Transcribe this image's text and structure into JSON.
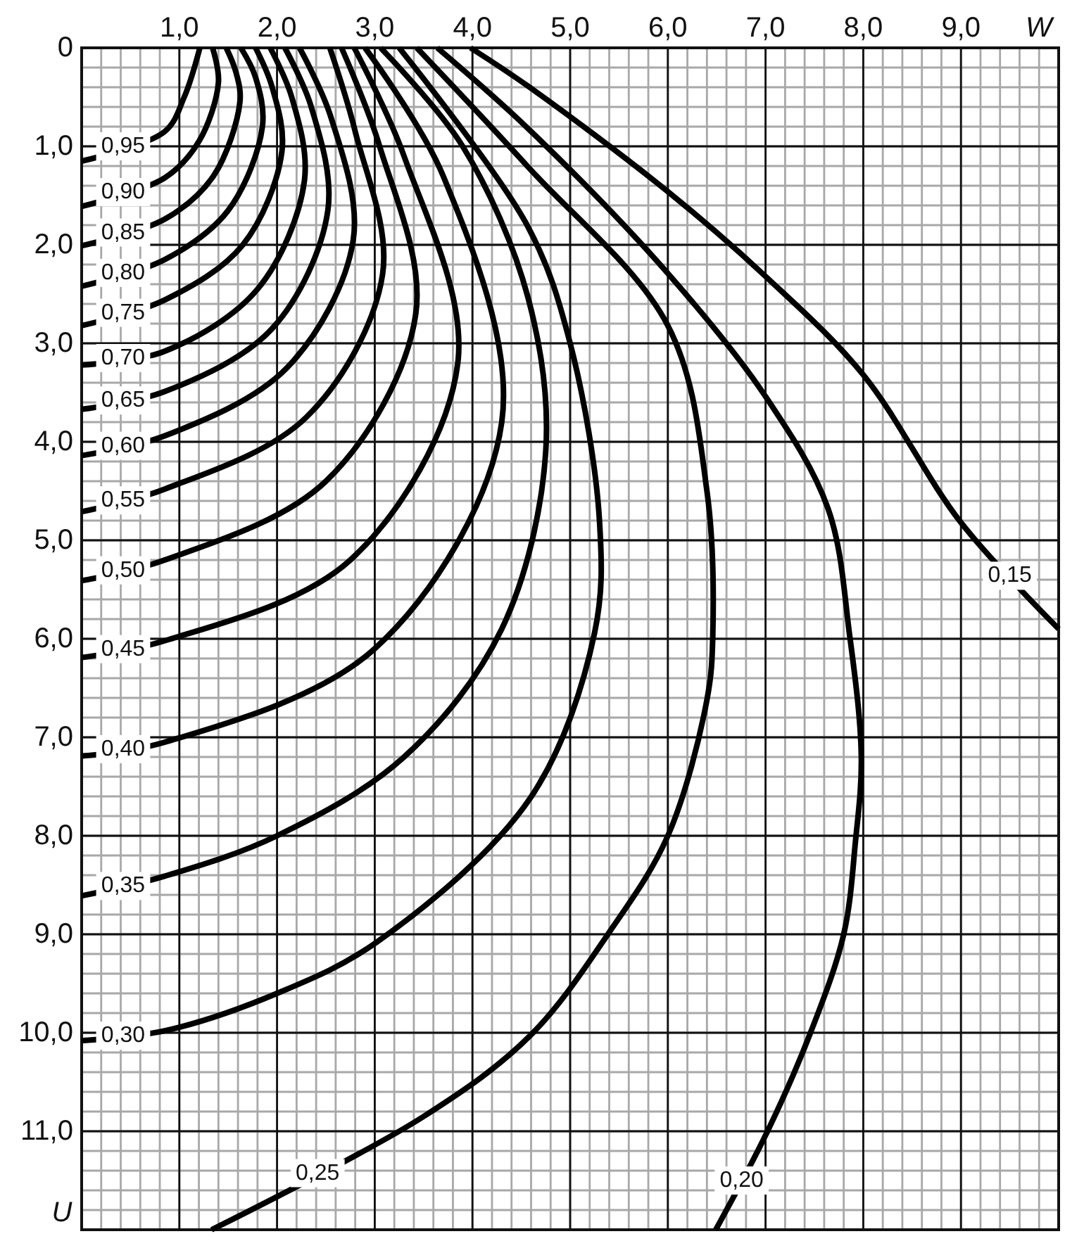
{
  "chart_data": {
    "type": "line",
    "xlabel": "W",
    "ylabel": "U",
    "xlim": [
      0,
      10
    ],
    "ylim": [
      12,
      0
    ],
    "xticks": [
      {
        "value": 1,
        "label": "1,0"
      },
      {
        "value": 2,
        "label": "2,0"
      },
      {
        "value": 3,
        "label": "3,0"
      },
      {
        "value": 4,
        "label": "4,0"
      },
      {
        "value": 5,
        "label": "5,0"
      },
      {
        "value": 6,
        "label": "6,0"
      },
      {
        "value": 7,
        "label": "7,0"
      },
      {
        "value": 8,
        "label": "8,0"
      },
      {
        "value": 9,
        "label": "9,0"
      }
    ],
    "yticks": [
      0,
      {
        "value": 1,
        "label": "1,0"
      },
      {
        "value": 2,
        "label": "2,0"
      },
      {
        "value": 3,
        "label": "3,0"
      },
      {
        "value": 4,
        "label": "4,0"
      },
      {
        "value": 5,
        "label": "5,0"
      },
      {
        "value": 6,
        "label": "6,0"
      },
      {
        "value": 7,
        "label": "7,0"
      },
      {
        "value": 8,
        "label": "8,0"
      },
      {
        "value": 9,
        "label": "9,0"
      },
      {
        "value": 10,
        "label": "10,0"
      },
      {
        "value": 11,
        "label": "11,0"
      }
    ],
    "grid": true,
    "series": [
      {
        "name": "0,95",
        "color": "#000000",
        "x": [
          0,
          0.85,
          1.05,
          1.21
        ],
        "values": [
          1.15,
          0.85,
          0.5,
          0
        ]
      },
      {
        "name": "0,90",
        "color": "#000000",
        "x": [
          0,
          0.85,
          1.2,
          1.4,
          1.34
        ],
        "values": [
          1.61,
          1.32,
          0.95,
          0.35,
          0
        ]
      },
      {
        "name": "0,85",
        "color": "#000000",
        "x": [
          0,
          0.85,
          1.35,
          1.62,
          1.58,
          1.48
        ],
        "values": [
          2.01,
          1.74,
          1.3,
          0.55,
          0.25,
          0
        ]
      },
      {
        "name": "0,80",
        "color": "#000000",
        "x": [
          0,
          0.85,
          1.5,
          1.85,
          1.78,
          1.63
        ],
        "values": [
          2.42,
          2.15,
          1.65,
          0.8,
          0.3,
          0
        ]
      },
      {
        "name": "0,75",
        "color": "#000000",
        "x": [
          0,
          0.85,
          1.65,
          2.05,
          1.95,
          1.78
        ],
        "values": [
          2.82,
          2.56,
          2.0,
          1.05,
          0.4,
          0
        ]
      },
      {
        "name": "0,70",
        "color": "#000000",
        "x": [
          0,
          0.85,
          1.8,
          2.28,
          2.15,
          1.93
        ],
        "values": [
          3.22,
          3.08,
          2.45,
          1.35,
          0.5,
          0
        ]
      },
      {
        "name": "0,65",
        "color": "#000000",
        "x": [
          0,
          0.85,
          1.95,
          2.52,
          2.35,
          2.08
        ],
        "values": [
          3.67,
          3.49,
          2.85,
          1.65,
          0.6,
          0
        ]
      },
      {
        "name": "0,60",
        "color": "#000000",
        "x": [
          0,
          0.85,
          2.1,
          2.78,
          2.55,
          2.23
        ],
        "values": [
          4.14,
          3.94,
          3.25,
          1.95,
          0.7,
          0
        ]
      },
      {
        "name": "0,55",
        "color": "#000000",
        "x": [
          0,
          0.85,
          2.3,
          3.08,
          2.8,
          2.54
        ],
        "values": [
          4.71,
          4.48,
          3.75,
          2.3,
          0.85,
          0
        ]
      },
      {
        "name": "0,50",
        "color": "#000000",
        "x": [
          0,
          0.85,
          2.5,
          3.42,
          3.05,
          2.66
        ],
        "values": [
          5.41,
          5.2,
          4.4,
          2.7,
          1.0,
          0
        ]
      },
      {
        "name": "0,45",
        "color": "#000000",
        "x": [
          0,
          0.85,
          2.75,
          3.85,
          3.3,
          2.79
        ],
        "values": [
          6.19,
          6.02,
          5.2,
          3.2,
          1.1,
          0
        ]
      },
      {
        "name": "0,40",
        "color": "#000000",
        "x": [
          0,
          0.85,
          3.0,
          4.3,
          3.7,
          2.9
        ],
        "values": [
          7.19,
          7.05,
          6.1,
          3.8,
          1.3,
          0
        ]
      },
      {
        "name": "0,35",
        "color": "#000000",
        "x": [
          0,
          0.85,
          2.0,
          3.3,
          4.3,
          4.75,
          4.57,
          3.9,
          3.06
        ],
        "values": [
          8.61,
          8.41,
          8.0,
          7.2,
          5.9,
          4.1,
          2.54,
          1.0,
          0
        ]
      },
      {
        "name": "0,30",
        "color": "#000000",
        "x": [
          0,
          0.85,
          2.0,
          3.02,
          4.59,
          5.25,
          5.3,
          5.0,
          4.57,
          3.25
        ],
        "values": [
          10.08,
          9.98,
          9.6,
          9.08,
          7.62,
          5.94,
          4.8,
          3.0,
          1.82,
          0
        ]
      },
      {
        "name": "0,25",
        "color": "#000000",
        "x": [
          1.33,
          3.5,
          4.59,
          5.4,
          6.0,
          6.4,
          6.46,
          6.4,
          6.0,
          4.57,
          3.43
        ],
        "values": [
          12,
          10.85,
          10.03,
          8.98,
          8.0,
          6.62,
          5.96,
          4.5,
          2.82,
          1.21,
          0
        ]
      },
      {
        "name": "0,20",
        "color": "#000000",
        "x": [
          6.49,
          7.02,
          7.46,
          7.8,
          7.92,
          7.98,
          7.86,
          7.64,
          7.0,
          6.0,
          4.57,
          3.64
        ],
        "values": [
          12,
          11,
          10,
          9,
          8.06,
          7.2,
          5.96,
          4.68,
          3.54,
          2.29,
          0.82,
          0
        ]
      },
      {
        "name": "0,15",
        "color": "#000000",
        "x": [
          10,
          9.0,
          8.0,
          7.0,
          6.0,
          4.57,
          3.98
        ],
        "values": [
          5.9,
          4.82,
          3.32,
          2.32,
          1.46,
          0.39,
          0
        ]
      }
    ]
  }
}
